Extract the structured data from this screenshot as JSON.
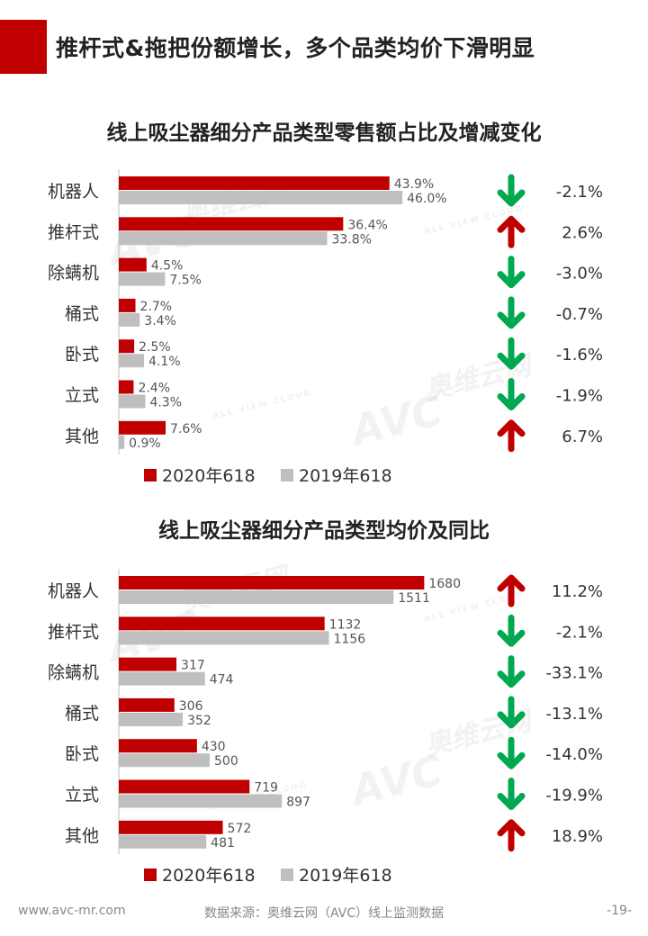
{
  "header": {
    "title": "推杆式&拖把份额增长，多个品类均价下滑明显"
  },
  "watermark": {
    "logo": "AVC",
    "cn": "奥维云网",
    "en": "ALL VIEW CLOUD"
  },
  "colors": {
    "red": "#c00000",
    "gray": "#bfbfbf",
    "up": "#c00000",
    "down": "#00a84f"
  },
  "chart_data": [
    {
      "type": "bar",
      "orientation": "horizontal",
      "title": "线上吸尘器细分产品类型零售额占比及增减变化",
      "categories": [
        "机器人",
        "推杆式",
        "除螨机",
        "桶式",
        "卧式",
        "立式",
        "其他"
      ],
      "series": [
        {
          "name": "2020年618",
          "values": [
            43.9,
            36.4,
            4.5,
            2.7,
            2.5,
            2.4,
            7.6
          ],
          "labels": [
            "43.9%",
            "36.4%",
            "4.5%",
            "2.7%",
            "2.5%",
            "2.4%",
            "7.6%"
          ]
        },
        {
          "name": "2019年618",
          "values": [
            46.0,
            33.8,
            7.5,
            3.4,
            4.1,
            4.3,
            0.9
          ],
          "labels": [
            "46.0%",
            "33.8%",
            "7.5%",
            "3.4%",
            "4.1%",
            "4.3%",
            "0.9%"
          ]
        }
      ],
      "change": [
        "-2.1%",
        "2.6%",
        "-3.0%",
        "-0.7%",
        "-1.6%",
        "-1.9%",
        "6.7%"
      ],
      "direction": [
        "down",
        "up",
        "down",
        "down",
        "down",
        "down",
        "up"
      ],
      "xlim": [
        0,
        50
      ],
      "legend_position": "bottom"
    },
    {
      "type": "bar",
      "orientation": "horizontal",
      "title": "线上吸尘器细分产品类型均价及同比",
      "categories": [
        "机器人",
        "推杆式",
        "除螨机",
        "桶式",
        "卧式",
        "立式",
        "其他"
      ],
      "series": [
        {
          "name": "2020年618",
          "values": [
            1680,
            1132,
            317,
            306,
            430,
            719,
            572
          ],
          "labels": [
            "1680",
            "1132",
            "317",
            "306",
            "430",
            "719",
            "572"
          ]
        },
        {
          "name": "2019年618",
          "values": [
            1511,
            1156,
            474,
            352,
            500,
            897,
            481
          ],
          "labels": [
            "1511",
            "1156",
            "474",
            "352",
            "500",
            "897",
            "481"
          ]
        }
      ],
      "change": [
        "11.2%",
        "-2.1%",
        "-33.1%",
        "-13.1%",
        "-14.0%",
        "-19.9%",
        "18.9%"
      ],
      "direction": [
        "up",
        "down",
        "down",
        "down",
        "down",
        "down",
        "up"
      ],
      "xlim": [
        0,
        1900
      ],
      "legend_position": "bottom"
    }
  ],
  "footer": {
    "website": "www.avc-mr.com",
    "source": "数据来源：奥维云网（AVC）线上监测数据",
    "page": "-19-"
  }
}
